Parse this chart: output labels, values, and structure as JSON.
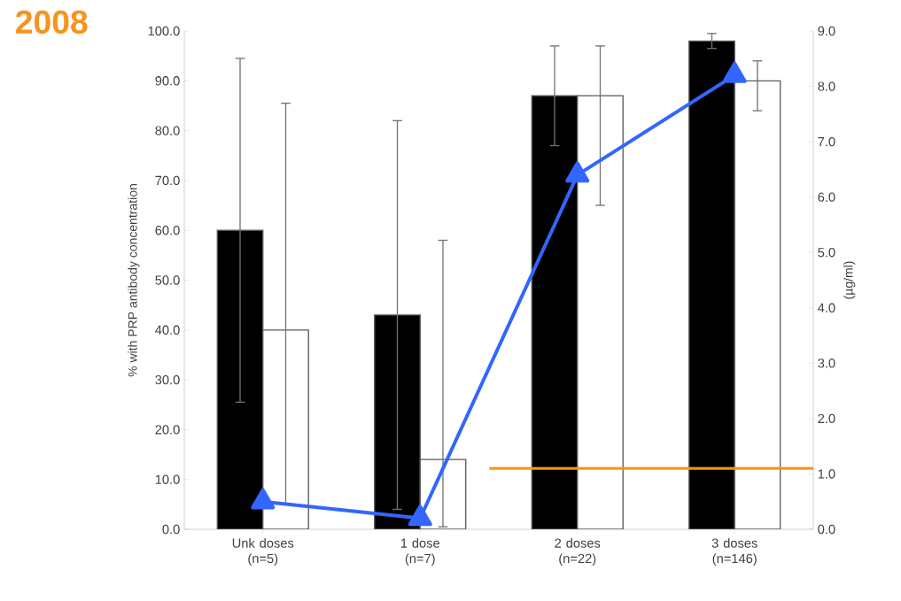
{
  "chart_data": {
    "type": "bar",
    "title": "2008",
    "ylabel": "% with PRP antibody concentration",
    "y2label": "(µg/ml)",
    "categories": [
      "Unk doses (n=5)",
      "1 dose (n=7)",
      "2 doses (n=22)",
      "3 doses (n=146)"
    ],
    "series": [
      {
        "color": "#000000",
        "values": [
          60,
          43,
          87,
          98
        ],
        "errors": [
          [
            25.5,
            94.5
          ],
          [
            4,
            82
          ],
          [
            77,
            97
          ],
          [
            96.5,
            99.5
          ]
        ]
      },
      {
        "color": "#ffffff",
        "values": [
          40,
          14,
          87,
          90
        ],
        "errors": [
          [
            5,
            85.5
          ],
          [
            0.5,
            58
          ],
          [
            65,
            97
          ],
          [
            84,
            94
          ]
        ]
      },
      {
        "type": "line",
        "axis": "y2",
        "color": "#3366ff",
        "marker": "triangle",
        "values": [
          0.5,
          0.2,
          6.4,
          8.2
        ]
      }
    ],
    "ylim": [
      0,
      100
    ],
    "yticks": [
      {
        "value": 0,
        "label": "0.0"
      },
      {
        "value": 10,
        "label": "10.0"
      },
      {
        "value": 20,
        "label": "20.0"
      },
      {
        "value": 30,
        "label": "30.0"
      },
      {
        "value": 40,
        "label": "40.0"
      },
      {
        "value": 50,
        "label": "50.0"
      },
      {
        "value": 60,
        "label": "60.0"
      },
      {
        "value": 70,
        "label": "70.0"
      },
      {
        "value": 80,
        "label": "80.0"
      },
      {
        "value": 90,
        "label": "90.0"
      },
      {
        "value": 100,
        "label": "100.0"
      }
    ],
    "y2lim": [
      0,
      9
    ],
    "y2ticks": [
      {
        "value": 0,
        "label": "0.0"
      },
      {
        "value": 1,
        "label": "1.0"
      },
      {
        "value": 2,
        "label": "2.0"
      },
      {
        "value": 3,
        "label": "3.0"
      },
      {
        "value": 4,
        "label": "4.0"
      },
      {
        "value": 5,
        "label": "5.0"
      },
      {
        "value": 6,
        "label": "6.0"
      },
      {
        "value": 7,
        "label": "7.0"
      },
      {
        "value": 8,
        "label": "8.0"
      },
      {
        "value": 9,
        "label": "9.0"
      }
    ],
    "ref_lines": [
      {
        "axis": "y2",
        "value": 1.1,
        "color": "#f7941d"
      }
    ]
  }
}
